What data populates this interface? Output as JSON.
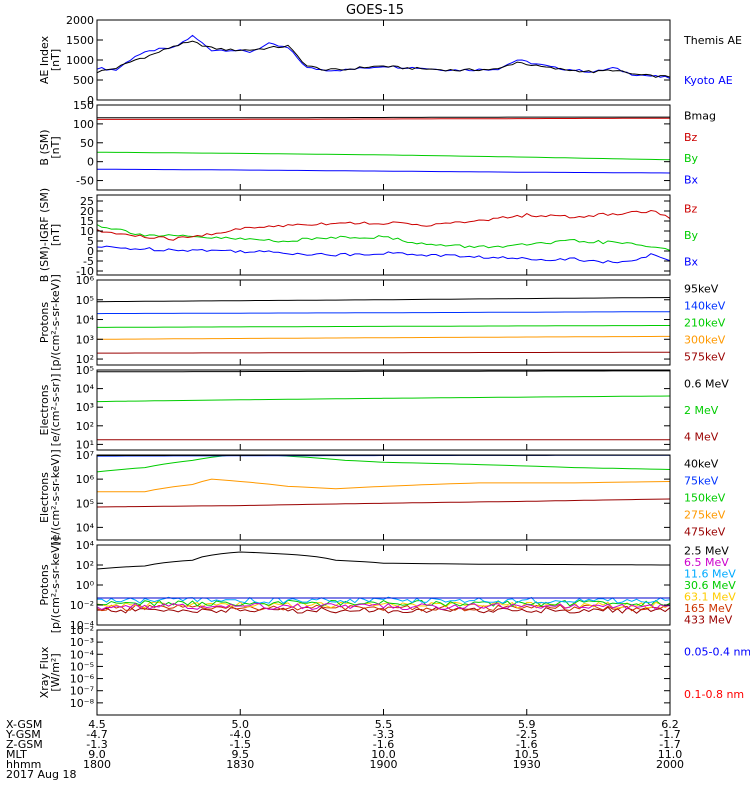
{
  "title": "GOES-15",
  "chart_data": [
    {
      "type": "line",
      "panel": "ae",
      "ylabel": [
        "AE Index",
        "[nT]"
      ],
      "ylim": [
        0,
        2000
      ],
      "ticks": [
        "0",
        "500",
        "1000",
        "1500",
        "2000"
      ],
      "tick_values": [
        0,
        500,
        1000,
        1500,
        2000
      ],
      "scale": "linear",
      "series": [
        {
          "name": "Kyoto AE",
          "color": "#0000ff",
          "x": [
            0,
            2,
            4,
            6,
            8,
            10,
            12,
            14,
            16,
            18,
            20,
            22,
            24,
            26,
            28,
            30,
            32,
            34,
            36,
            38,
            40,
            42,
            44,
            46,
            48,
            50,
            52,
            54,
            56,
            58,
            60
          ],
          "y": [
            800,
            750,
            1100,
            1250,
            1300,
            1600,
            1250,
            1250,
            1200,
            1400,
            1300,
            800,
            750,
            750,
            800,
            850,
            820,
            800,
            760,
            750,
            760,
            780,
            1000,
            900,
            800,
            750,
            700,
            800,
            650,
            600,
            550
          ]
        },
        {
          "name": "Themis AE",
          "color": "#000000",
          "x": [
            0,
            2,
            4,
            6,
            8,
            10,
            12,
            14,
            16,
            18,
            20,
            22,
            24,
            26,
            28,
            30,
            32,
            34,
            36,
            38,
            40,
            42,
            44,
            46,
            48,
            50,
            52,
            54,
            56,
            58,
            60
          ],
          "y": [
            700,
            800,
            1000,
            1150,
            1350,
            1450,
            1300,
            1250,
            1250,
            1300,
            1350,
            850,
            750,
            760,
            820,
            850,
            800,
            780,
            760,
            740,
            760,
            770,
            950,
            850,
            780,
            740,
            700,
            750,
            650,
            600,
            580
          ]
        }
      ]
    },
    {
      "type": "line",
      "panel": "bsm",
      "ylabel": [
        "B (SM)",
        "[nT]"
      ],
      "ylim": [
        -75,
        150
      ],
      "ticks": [
        "-50",
        "0",
        "50",
        "100",
        "150"
      ],
      "tick_values": [
        -50,
        0,
        50,
        100,
        150
      ],
      "scale": "linear",
      "series": [
        {
          "name": "Bx",
          "color": "#0000ff",
          "x": [
            0,
            15,
            30,
            45,
            60
          ],
          "y": [
            -20,
            -22,
            -25,
            -28,
            -30
          ]
        },
        {
          "name": "By",
          "color": "#00cc00",
          "x": [
            0,
            15,
            30,
            45,
            60
          ],
          "y": [
            25,
            22,
            18,
            12,
            5
          ]
        },
        {
          "name": "Bz",
          "color": "#cc0000",
          "x": [
            0,
            15,
            30,
            45,
            60
          ],
          "y": [
            112,
            112,
            113,
            114,
            115
          ]
        },
        {
          "name": "Bmag",
          "color": "#000000",
          "x": [
            0,
            15,
            30,
            45,
            60
          ],
          "y": [
            116,
            116,
            117,
            118,
            118
          ]
        }
      ]
    },
    {
      "type": "line",
      "panel": "bigrf",
      "ylabel": [
        "B (SM)-IGRF (SM)",
        "[nT]"
      ],
      "ylim": [
        -12,
        28
      ],
      "ticks": [
        "-10",
        "-5",
        "0",
        "5",
        "10",
        "15",
        "20",
        "25"
      ],
      "tick_values": [
        -10,
        -5,
        0,
        5,
        10,
        15,
        20,
        25
      ],
      "scale": "linear",
      "series": [
        {
          "name": "Bx",
          "color": "#0000ff",
          "x": [
            0,
            5,
            10,
            15,
            20,
            25,
            30,
            35,
            40,
            45,
            50,
            55,
            58,
            60
          ],
          "y": [
            2,
            1,
            0.5,
            0,
            -1,
            -2,
            -1,
            -2,
            -3,
            -4,
            -4,
            -6,
            -2,
            -5
          ]
        },
        {
          "name": "By",
          "color": "#00cc00",
          "x": [
            0,
            5,
            10,
            15,
            20,
            25,
            30,
            35,
            40,
            45,
            50,
            55,
            60
          ],
          "y": [
            13,
            8,
            7,
            6,
            5,
            7,
            7,
            3,
            2,
            3,
            5,
            4,
            1
          ]
        },
        {
          "name": "Bz",
          "color": "#cc0000",
          "x": [
            0,
            5,
            8,
            10,
            15,
            20,
            25,
            30,
            35,
            40,
            45,
            50,
            55,
            58,
            60
          ],
          "y": [
            10,
            7,
            6,
            7,
            11,
            13,
            14,
            14,
            13,
            15,
            18,
            17,
            19,
            20,
            17
          ]
        }
      ]
    },
    {
      "type": "line",
      "panel": "protons_low",
      "ylabel": [
        "Protons",
        "[p/(cm²-s-sr-keV)]"
      ],
      "ylim": [
        50,
        1000000
      ],
      "ticks": [
        "10²",
        "10³",
        "10⁴",
        "10⁵",
        "10⁶"
      ],
      "tick_values": [
        100,
        1000,
        10000,
        100000,
        1000000
      ],
      "scale": "log",
      "series": [
        {
          "name": "575keV",
          "color": "#990000",
          "x": [
            0,
            30,
            60
          ],
          "y": [
            200,
            210,
            220
          ]
        },
        {
          "name": "300keV",
          "color": "#ff9900",
          "x": [
            0,
            30,
            60
          ],
          "y": [
            1000,
            1200,
            1400
          ]
        },
        {
          "name": "210keV",
          "color": "#00cc00",
          "x": [
            0,
            30,
            60
          ],
          "y": [
            4000,
            4500,
            5000
          ]
        },
        {
          "name": "140keV",
          "color": "#0033ff",
          "x": [
            0,
            30,
            60
          ],
          "y": [
            20000,
            22000,
            25000
          ]
        },
        {
          "name": "95keV",
          "color": "#000000",
          "x": [
            0,
            30,
            60
          ],
          "y": [
            80000,
            100000,
            130000
          ]
        }
      ]
    },
    {
      "type": "line",
      "panel": "electrons_high",
      "ylabel": [
        "Electrons",
        "[e/(cm²-s-sr)]"
      ],
      "ylim": [
        5,
        100000
      ],
      "ticks": [
        "10¹",
        "10²",
        "10³",
        "10⁴",
        "10⁵"
      ],
      "tick_values": [
        10,
        100,
        1000,
        10000,
        100000
      ],
      "scale": "log",
      "series": [
        {
          "name": "4 MeV",
          "color": "#990000",
          "x": [
            0,
            30,
            60
          ],
          "y": [
            18,
            18,
            18
          ]
        },
        {
          "name": "2 MeV",
          "color": "#00cc00",
          "x": [
            0,
            30,
            60
          ],
          "y": [
            2000,
            3000,
            4000
          ]
        },
        {
          "name": "0.6 MeV",
          "color": "#000000",
          "x": [
            0,
            30,
            60
          ],
          "y": [
            80000,
            85000,
            90000
          ]
        }
      ]
    },
    {
      "type": "line",
      "panel": "electrons_low",
      "ylabel": [
        "Electrons",
        "[e/(cm²-s-sr-keV)]"
      ],
      "ylim": [
        3000,
        10000000
      ],
      "ticks": [
        "10⁴",
        "10⁵",
        "10⁶",
        "10⁷"
      ],
      "tick_values": [
        10000,
        100000,
        1000000,
        10000000
      ],
      "scale": "log",
      "series": [
        {
          "name": "475keV",
          "color": "#990000",
          "x": [
            0,
            15,
            30,
            45,
            60
          ],
          "y": [
            70000,
            80000,
            100000,
            120000,
            150000
          ]
        },
        {
          "name": "275keV",
          "color": "#ff9900",
          "x": [
            0,
            5,
            10,
            12,
            15,
            20,
            25,
            30,
            40,
            50,
            60
          ],
          "y": [
            300000,
            300000,
            600000,
            1000000,
            800000,
            500000,
            400000,
            500000,
            700000,
            700000,
            800000
          ]
        },
        {
          "name": "150keV",
          "color": "#00cc00",
          "x": [
            0,
            5,
            10,
            14,
            18,
            22,
            26,
            30,
            40,
            50,
            60
          ],
          "y": [
            2000000,
            3000000,
            6000000,
            10000000,
            10000000,
            8000000,
            6000000,
            5000000,
            4000000,
            3000000,
            2500000
          ]
        },
        {
          "name": "75keV",
          "color": "#0033ff",
          "x": [
            0,
            30,
            60
          ],
          "y": [
            9000000,
            9500000,
            9800000
          ]
        },
        {
          "name": "40keV",
          "color": "#000000",
          "x": [
            0,
            30,
            60
          ],
          "y": [
            9500000,
            9800000,
            9900000
          ]
        }
      ]
    },
    {
      "type": "line",
      "panel": "protons_high",
      "ylabel": [
        "Protons",
        "[p/(cm²-s-sr-keV)]"
      ],
      "ylim": [
        0.0001,
        10000
      ],
      "ticks": [
        "10⁻⁴",
        "10⁻²",
        "10⁰",
        "10²",
        "10⁴"
      ],
      "tick_values": [
        0.0001,
        0.01,
        1,
        100,
        10000
      ],
      "scale": "log",
      "series": [
        {
          "name": "433 MeV",
          "color": "#990000",
          "x": [
            0,
            30,
            60
          ],
          "y": [
            0.003,
            0.003,
            0.003
          ]
        },
        {
          "name": "165 MeV",
          "color": "#cc3300",
          "x": [
            0,
            30,
            60
          ],
          "y": [
            0.005,
            0.005,
            0.005
          ]
        },
        {
          "name": "63.1 MeV",
          "color": "#ffcc00",
          "x": [
            0,
            30,
            60
          ],
          "y": [
            0.01,
            0.01,
            0.01
          ]
        },
        {
          "name": "30.6 MeV",
          "color": "#00cc00",
          "x": [
            0,
            30,
            60
          ],
          "y": [
            0.015,
            0.015,
            0.015
          ]
        },
        {
          "name": "11.6 MeV",
          "color": "#00aaff",
          "x": [
            0,
            30,
            60
          ],
          "y": [
            0.03,
            0.03,
            0.03
          ]
        },
        {
          "name": "6.5 MeV",
          "color": "#cc00cc",
          "x": [
            0,
            30,
            60
          ],
          "y": [
            0.007,
            0.007,
            0.007
          ]
        },
        {
          "name": "2.5 MeV",
          "color": "#000000",
          "x": [
            0,
            5,
            10,
            15,
            20,
            25,
            30,
            40,
            50,
            60
          ],
          "y": [
            40,
            80,
            300,
            2000,
            1200,
            300,
            150,
            120,
            110,
            100
          ]
        },
        {
          "name": "",
          "color": "#0000cc",
          "x": [
            0,
            30,
            60
          ],
          "y": [
            0.05,
            0.05,
            0.05
          ]
        }
      ]
    },
    {
      "type": "line",
      "panel": "xray",
      "ylabel": [
        "Xray Flux",
        "[W/m²]"
      ],
      "ylim": [
        1e-09,
        0.01
      ],
      "ticks": [
        "10⁻⁸",
        "10⁻⁷",
        "10⁻⁶",
        "10⁻⁵",
        "10⁻⁴",
        "10⁻³",
        "10⁻²"
      ],
      "tick_values": [
        1e-08,
        1e-07,
        1e-06,
        1e-05,
        0.0001,
        0.001,
        0.01
      ],
      "scale": "log",
      "series": [
        {
          "name": "0.1-0.8 nm",
          "color": "#ff0000",
          "x": [],
          "y": []
        },
        {
          "name": "0.05-0.4 nm",
          "color": "#0000ff",
          "x": [],
          "y": []
        }
      ]
    }
  ],
  "x_axis": {
    "xlim": [
      0,
      60
    ],
    "major_x": [
      0,
      15,
      30,
      45,
      60
    ],
    "rows": [
      {
        "label": "X-GSM",
        "values": [
          "4.5",
          "5.0",
          "5.5",
          "5.9",
          "6.2"
        ]
      },
      {
        "label": "Y-GSM",
        "values": [
          "-4.7",
          "-4.0",
          "-3.3",
          "-2.5",
          "-1.7"
        ]
      },
      {
        "label": "Z-GSM",
        "values": [
          "-1.3",
          "-1.5",
          "-1.6",
          "-1.6",
          "-1.7"
        ]
      },
      {
        "label": "MLT",
        "values": [
          "9.0",
          "9.5",
          "10.0",
          "10.5",
          "11.0"
        ]
      },
      {
        "label": "hhmm",
        "values": [
          "1800",
          "1830",
          "1900",
          "1930",
          "2000"
        ]
      }
    ],
    "date": "2017 Aug 18"
  }
}
